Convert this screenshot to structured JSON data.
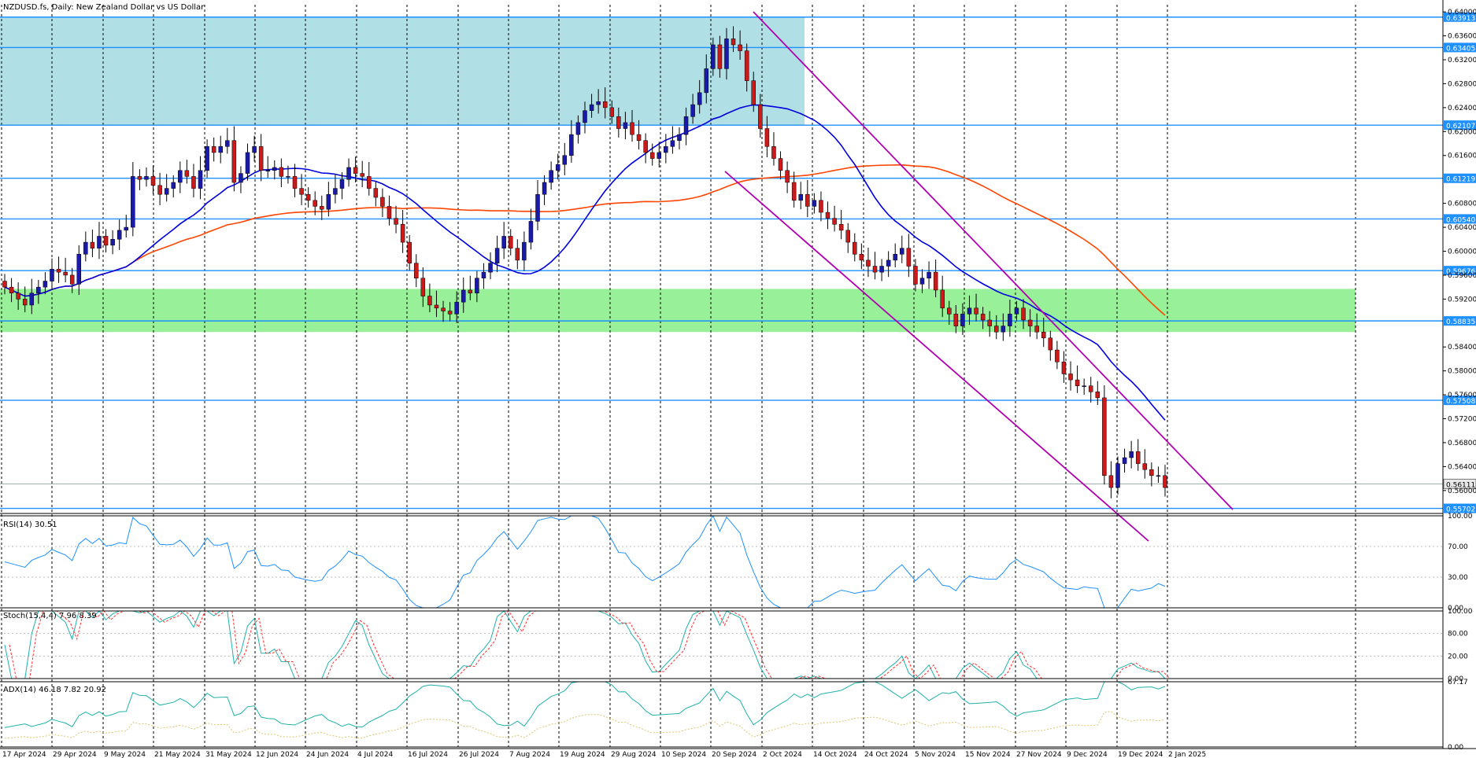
{
  "chart_data": {
    "type": "candlestick",
    "symbol_title": "NZDUSD.fs, Daily:  New Zealand Dollar vs US Dollar",
    "price_axis": {
      "range": [
        0.5563,
        0.6412
      ],
      "ticks": [
        "0.64000",
        "0.63600",
        "0.63200",
        "0.62800",
        "0.62400",
        "0.62000",
        "0.61600",
        "0.60800",
        "0.60400",
        "0.60000",
        "0.59600",
        "0.59200",
        "0.58400",
        "0.58000",
        "0.57600",
        "0.57200",
        "0.56800",
        "0.56400",
        "0.56000"
      ],
      "tick_values": [
        0.64,
        0.636,
        0.632,
        0.628,
        0.624,
        0.62,
        0.616,
        0.608,
        0.604,
        0.6,
        0.596,
        0.592,
        0.584,
        0.58,
        0.576,
        0.572,
        0.568,
        0.564,
        0.56
      ]
    },
    "levels": [
      {
        "label": "0.63913",
        "value": 0.63913
      },
      {
        "label": "0.63405",
        "value": 0.63405
      },
      {
        "label": "0.62107",
        "value": 0.62107
      },
      {
        "label": "0.61219",
        "value": 0.61219
      },
      {
        "label": "0.60540",
        "value": 0.6054
      },
      {
        "label": "0.59676",
        "value": 0.59676
      },
      {
        "label": "0.58835",
        "value": 0.58835
      },
      {
        "label": "0.57508",
        "value": 0.57508
      },
      {
        "label": "0.55702",
        "value": 0.55702
      }
    ],
    "current_price": {
      "label": "0.56111",
      "value": 0.56111
    },
    "zones": [
      {
        "name": "supply-zone",
        "color": "#b0dfe5",
        "from_date": "17 Apr 2024",
        "to_date": "11 Oct 2024",
        "low": 0.62107,
        "high": 0.63913
      },
      {
        "name": "demand-zone",
        "color": "#98f098",
        "from_date": "17 Apr 2024",
        "to_date": "2 Jan 2025+",
        "low": 0.5865,
        "high": 0.5937
      }
    ],
    "x_axis_dates": [
      "17 Apr 2024",
      "29 Apr 2024",
      "9 May 2024",
      "21 May 2024",
      "31 May 2024",
      "12 Jun 2024",
      "24 Jun 2024",
      "4 Jul 2024",
      "16 Jul 2024",
      "26 Jul 2024",
      "7 Aug 2024",
      "19 Aug 2024",
      "29 Aug 2024",
      "10 Sep 2024",
      "20 Sep 2024",
      "2 Oct 2024",
      "14 Oct 2024",
      "24 Oct 2024",
      "5 Nov 2024",
      "15 Nov 2024",
      "27 Nov 2024",
      "9 Dec 2024",
      "19 Dec 2024",
      "2 Jan 2025"
    ],
    "candles_close": [
      0.594,
      0.593,
      0.592,
      0.591,
      0.593,
      0.594,
      0.595,
      0.597,
      0.5965,
      0.596,
      0.5945,
      0.5995,
      0.6015,
      0.6005,
      0.6025,
      0.601,
      0.602,
      0.6035,
      0.604,
      0.6125,
      0.612,
      0.6125,
      0.611,
      0.6095,
      0.6105,
      0.6115,
      0.6135,
      0.6125,
      0.6105,
      0.6135,
      0.6175,
      0.6165,
      0.6175,
      0.6185,
      0.6115,
      0.613,
      0.6165,
      0.6175,
      0.6135,
      0.6135,
      0.614,
      0.6125,
      0.6125,
      0.6105,
      0.6095,
      0.6085,
      0.6075,
      0.607,
      0.6095,
      0.6105,
      0.612,
      0.614,
      0.613,
      0.6125,
      0.6105,
      0.609,
      0.6075,
      0.6055,
      0.6045,
      0.6015,
      0.598,
      0.5955,
      0.5925,
      0.591,
      0.5905,
      0.59,
      0.5895,
      0.5915,
      0.5935,
      0.593,
      0.5955,
      0.5965,
      0.598,
      0.6005,
      0.6025,
      0.6005,
      0.5985,
      0.6015,
      0.605,
      0.6095,
      0.6115,
      0.6135,
      0.6145,
      0.616,
      0.6195,
      0.6215,
      0.6235,
      0.6245,
      0.625,
      0.624,
      0.6225,
      0.6205,
      0.6215,
      0.6195,
      0.6185,
      0.6165,
      0.6155,
      0.6165,
      0.6175,
      0.6185,
      0.6195,
      0.6225,
      0.6245,
      0.6265,
      0.6305,
      0.6345,
      0.6305,
      0.6355,
      0.6345,
      0.6335,
      0.6285,
      0.6245,
      0.6205,
      0.6175,
      0.6155,
      0.6135,
      0.6115,
      0.6085,
      0.6095,
      0.6075,
      0.6085,
      0.6065,
      0.6055,
      0.6045,
      0.6035,
      0.6015,
      0.5995,
      0.5985,
      0.5975,
      0.5965,
      0.5975,
      0.5985,
      0.5995,
      0.6005,
      0.5975,
      0.5945,
      0.5955,
      0.5965,
      0.5935,
      0.5905,
      0.5895,
      0.5875,
      0.5895,
      0.5905,
      0.5895,
      0.5885,
      0.5875,
      0.5865,
      0.5875,
      0.5895,
      0.5905,
      0.5885,
      0.5875,
      0.5865,
      0.5855,
      0.5835,
      0.5815,
      0.5795,
      0.5785,
      0.5775,
      0.5775,
      0.5765,
      0.5755,
      0.5625,
      0.5605,
      0.5645,
      0.5655,
      0.5665,
      0.5645,
      0.5635,
      0.5625,
      0.5625,
      0.5605
    ]
  },
  "indicators": {
    "rsi": {
      "header": "RSI(14) 30.51",
      "levels": [
        "100.00",
        "70.00",
        "30.00",
        "0.00"
      ],
      "color": "#1e90ff"
    },
    "stoch": {
      "header": "Stoch(15,4,4) 7.96 8.39",
      "levels": [
        "100.00",
        "80.00",
        "20.00",
        "0.00"
      ],
      "main_color": "#20b2aa",
      "signal_color": "#ff3030"
    },
    "adx": {
      "header": "ADX(14) 46.18 7.82 20.92",
      "levels": [
        "67.17",
        "0.00"
      ],
      "color": "#20b2aa"
    }
  },
  "colors": {
    "bull_body": "#1a1aaa",
    "bear_body": "#cc1a1a",
    "level_line": "#1e90ff",
    "ma_fast": "#0000dd",
    "ma_slow": "#ff4500",
    "channel": "#b000b0"
  }
}
